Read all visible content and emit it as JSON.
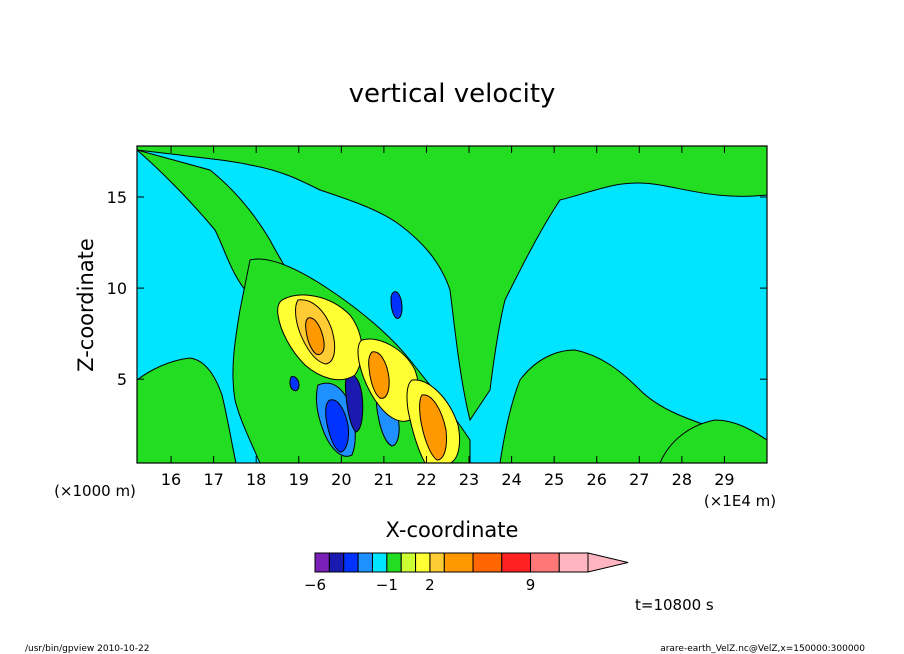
{
  "chart_data": {
    "type": "heatmap",
    "title": "vertical velocity",
    "xlabel": "X-coordinate",
    "ylabel": "Z-coordinate",
    "x_unit_left": "(×1000 m)",
    "x_unit_right": "(×1E4 m)",
    "xlim": [
      15.2,
      30.0
    ],
    "ylim": [
      0.4,
      17.8
    ],
    "x_ticks": [
      16,
      17,
      18,
      19,
      20,
      21,
      22,
      23,
      24,
      25,
      26,
      27,
      28,
      29
    ],
    "y_ticks": [
      5,
      10,
      15
    ],
    "colorbar": {
      "levels": [
        -6,
        -5,
        -4,
        -3,
        -2,
        -1,
        0,
        1,
        2,
        3,
        5,
        7,
        9,
        11,
        13
      ],
      "labels": [
        {
          "value": -6,
          "text": "−6"
        },
        {
          "value": -1,
          "text": "−1"
        },
        {
          "value": 2,
          "text": "2"
        },
        {
          "value": 9,
          "text": "9"
        }
      ],
      "colors": [
        "#7a1fb8",
        "#1a1ab0",
        "#0033ff",
        "#1e90ff",
        "#00e5ff",
        "#22dd22",
        "#ccff33",
        "#ffff33",
        "#ffcc33",
        "#ff9900",
        "#ff6600",
        "#ff2222",
        "#ff7777",
        "#ffb6c1"
      ]
    },
    "field_colors": {
      "background": "#00e5ff",
      "weak_up": "#22dd22",
      "up_1": "#ccff33",
      "up_2": "#ffff33",
      "up_3": "#ffcc33",
      "up_4": "#ff9900",
      "down_1": "#1e90ff",
      "down_2": "#0033ff",
      "down_3": "#1a1ab0"
    },
    "annotation_time": "t=10800 s"
  },
  "footer": {
    "left": "/usr/bin/gpview   2010-10-22",
    "right": "arare-earth_VelZ.nc@VelZ,x=150000:300000"
  }
}
